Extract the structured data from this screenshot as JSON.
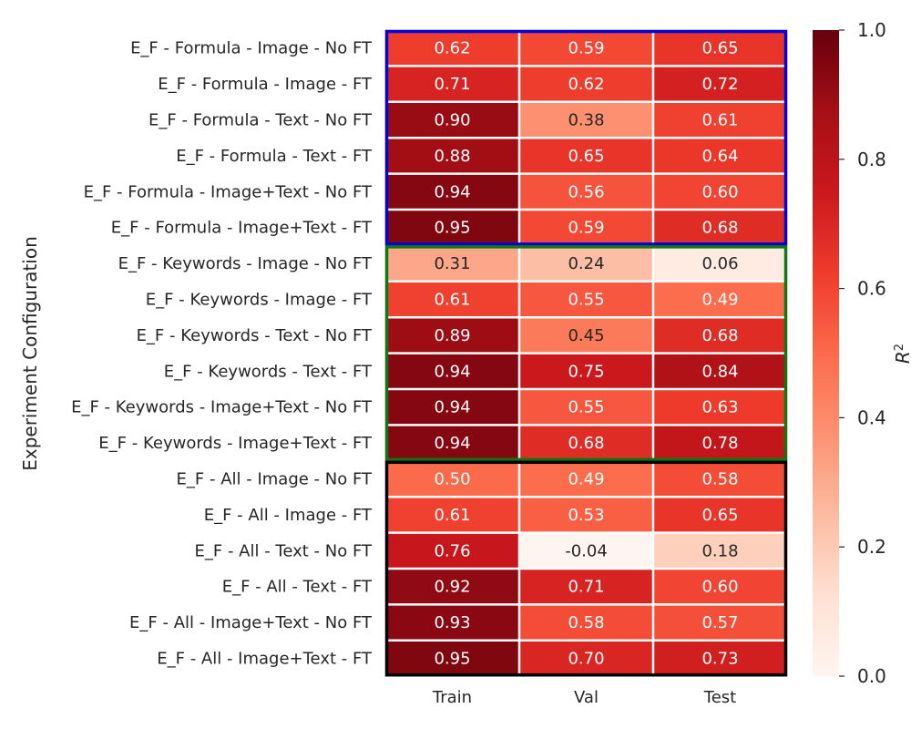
{
  "chart_data": {
    "type": "heatmap",
    "ylabel": "Experiment Configuration",
    "colorbar_label": "R",
    "colorbar_label_superscript": "2",
    "colorbar_range": [
      0.0,
      1.0
    ],
    "colorbar_ticks": [
      "0.0",
      "0.2",
      "0.4",
      "0.6",
      "0.8",
      "1.0"
    ],
    "colormap": "Reds",
    "columns": [
      "Train",
      "Val",
      "Test"
    ],
    "rows": [
      "E_F - Formula - Image - No FT",
      "E_F - Formula - Image - FT",
      "E_F - Formula - Text - No FT",
      "E_F - Formula - Text - FT",
      "E_F - Formula - Image+Text - No FT",
      "E_F - Formula - Image+Text - FT",
      "E_F - Keywords - Image - No FT",
      "E_F - Keywords - Image - FT",
      "E_F - Keywords - Text - No FT",
      "E_F - Keywords - Text - FT",
      "E_F - Keywords - Image+Text - No FT",
      "E_F - Keywords - Image+Text - FT",
      "E_F - All - Image - No FT",
      "E_F - All - Image - FT",
      "E_F - All - Text - No FT",
      "E_F - All - Text - FT",
      "E_F - All - Image+Text - No FT",
      "E_F - All - Image+Text - FT"
    ],
    "values": [
      [
        0.62,
        0.59,
        0.65
      ],
      [
        0.71,
        0.62,
        0.72
      ],
      [
        0.9,
        0.38,
        0.61
      ],
      [
        0.88,
        0.65,
        0.64
      ],
      [
        0.94,
        0.56,
        0.6
      ],
      [
        0.95,
        0.59,
        0.68
      ],
      [
        0.31,
        0.24,
        0.06
      ],
      [
        0.61,
        0.55,
        0.49
      ],
      [
        0.89,
        0.45,
        0.68
      ],
      [
        0.94,
        0.75,
        0.84
      ],
      [
        0.94,
        0.55,
        0.63
      ],
      [
        0.94,
        0.68,
        0.78
      ],
      [
        0.5,
        0.49,
        0.58
      ],
      [
        0.61,
        0.53,
        0.65
      ],
      [
        0.76,
        -0.04,
        0.18
      ],
      [
        0.92,
        0.71,
        0.6
      ],
      [
        0.93,
        0.58,
        0.57
      ],
      [
        0.95,
        0.7,
        0.73
      ]
    ],
    "groups": [
      {
        "row_start": 0,
        "row_end": 5,
        "border_color": "#0000dd"
      },
      {
        "row_start": 6,
        "row_end": 11,
        "border_color": "#117711"
      },
      {
        "row_start": 12,
        "row_end": 17,
        "border_color": "#000000"
      }
    ]
  }
}
